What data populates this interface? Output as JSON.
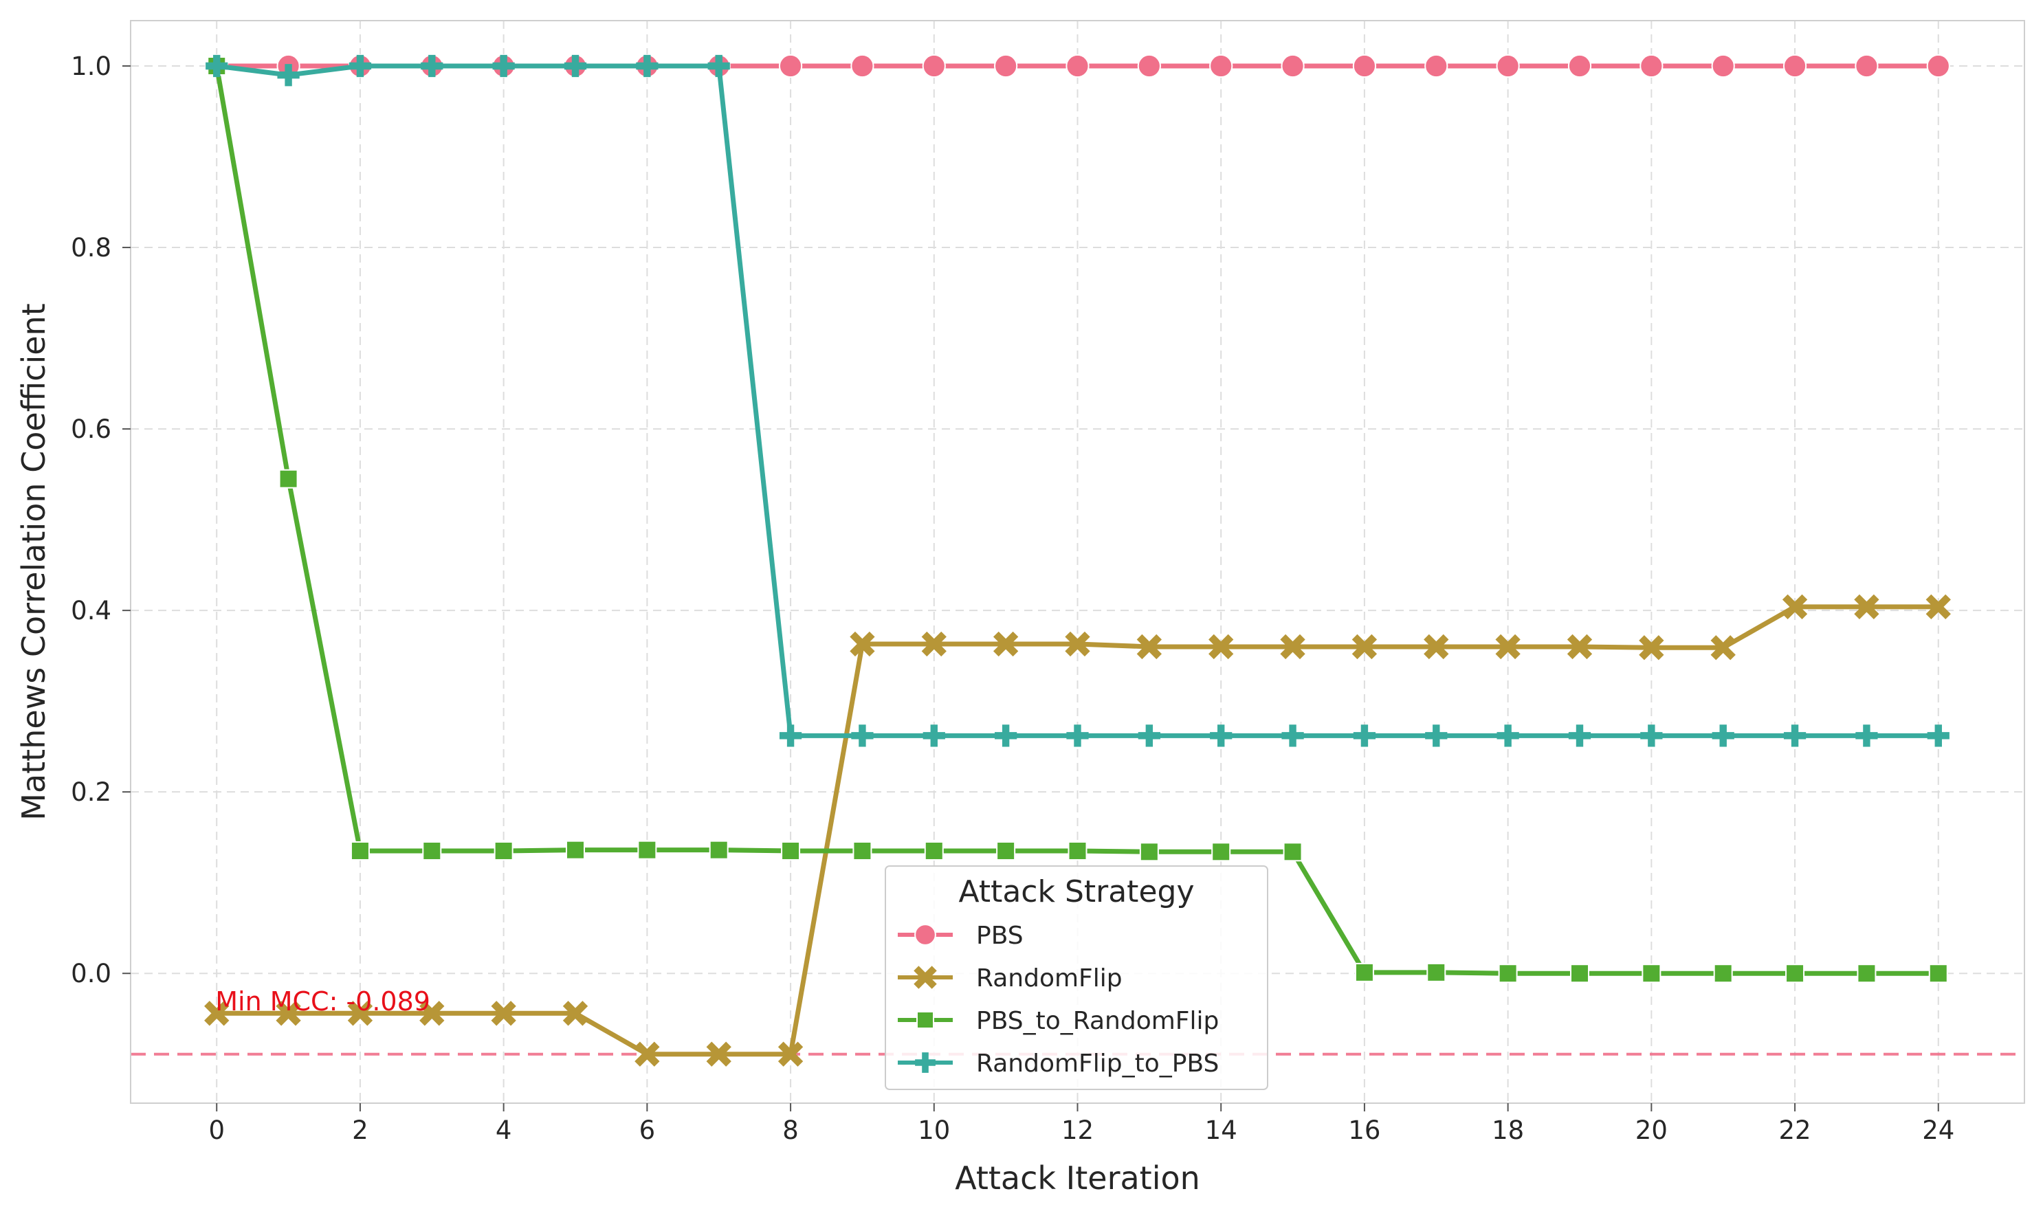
{
  "chart_data": {
    "type": "line",
    "title": "",
    "xlabel": "Attack Iteration",
    "ylabel": "Matthews Correlation Coefficient",
    "xlim": [
      -1.2,
      25.2
    ],
    "ylim": [
      -0.143,
      1.05
    ],
    "x_ticks": [
      0,
      2,
      4,
      6,
      8,
      10,
      12,
      14,
      16,
      18,
      20,
      22,
      24
    ],
    "y_ticks": [
      0.0,
      0.2,
      0.4,
      0.6,
      0.8,
      1.0
    ],
    "y_tick_labels": [
      "0.0",
      "0.2",
      "0.4",
      "0.6",
      "0.8",
      "1.0"
    ],
    "grid": true,
    "x": [
      0,
      1,
      2,
      3,
      4,
      5,
      6,
      7,
      8,
      9,
      10,
      11,
      12,
      13,
      14,
      15,
      16,
      17,
      18,
      19,
      20,
      21,
      22,
      23,
      24
    ],
    "series": [
      {
        "name": "PBS",
        "color": "#f0708a",
        "marker": "circle",
        "values": [
          1.0,
          1.0,
          1.0,
          1.0,
          1.0,
          1.0,
          1.0,
          1.0,
          1.0,
          1.0,
          1.0,
          1.0,
          1.0,
          1.0,
          1.0,
          1.0,
          1.0,
          1.0,
          1.0,
          1.0,
          1.0,
          1.0,
          1.0,
          1.0,
          1.0
        ]
      },
      {
        "name": "RandomFlip",
        "color": "#b79637",
        "marker": "x",
        "values": [
          -0.044,
          -0.044,
          -0.044,
          -0.044,
          -0.044,
          -0.044,
          -0.089,
          -0.089,
          -0.089,
          0.363,
          0.363,
          0.363,
          0.363,
          0.36,
          0.36,
          0.36,
          0.36,
          0.36,
          0.36,
          0.36,
          0.359,
          0.359,
          0.404,
          0.404,
          0.404
        ]
      },
      {
        "name": "PBS_to_RandomFlip",
        "color": "#52ad31",
        "marker": "square",
        "values": [
          1.0,
          0.545,
          0.135,
          0.135,
          0.135,
          0.136,
          0.136,
          0.136,
          0.135,
          0.135,
          0.135,
          0.135,
          0.135,
          0.134,
          0.134,
          0.134,
          0.001,
          0.001,
          0.0,
          0.0,
          0.0,
          0.0,
          0.0,
          0.0,
          0.0
        ]
      },
      {
        "name": "RandomFlip_to_PBS",
        "color": "#38ab9e",
        "marker": "plus",
        "values": [
          1.0,
          0.99,
          1.0,
          1.0,
          1.0,
          1.0,
          1.0,
          1.0,
          0.262,
          0.262,
          0.262,
          0.262,
          0.262,
          0.262,
          0.262,
          0.262,
          0.262,
          0.262,
          0.262,
          0.262,
          0.262,
          0.262,
          0.262,
          0.262,
          0.262
        ]
      }
    ],
    "reference_line": {
      "y": -0.089,
      "color": "#f0708a",
      "style": "dashed"
    },
    "annotation": {
      "text": "Min MCC: -0.089",
      "x": 0,
      "y": -0.03,
      "color": "#e8101a"
    },
    "legend": {
      "title": "Attack Strategy",
      "placement": "lower-center"
    }
  }
}
